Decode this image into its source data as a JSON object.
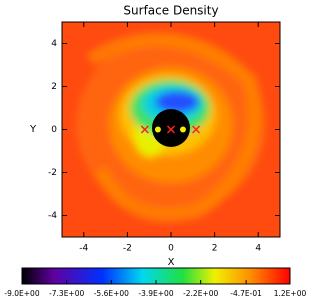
{
  "chart_data": {
    "type": "heatmap",
    "title": "Surface Density",
    "x_label": "X",
    "y_label": "Y",
    "xlim": [
      -5,
      5
    ],
    "ylim": [
      -5,
      5
    ],
    "xticks": [
      -4,
      -2,
      0,
      2,
      4
    ],
    "yticks": [
      -4,
      -2,
      0,
      2,
      4
    ],
    "series": [
      {
        "color": "#ff2020",
        "marker": "x",
        "x": [
          -1.2,
          0,
          1.15
        ],
        "values": [
          0,
          0,
          0
        ]
      },
      {
        "color": "#f0f000",
        "marker": "dot",
        "x": [
          -0.6,
          0.55
        ],
        "values": [
          0,
          0
        ]
      }
    ],
    "clim": [
      -9,
      1.2
    ],
    "cticks": [
      {
        "value": -9,
        "label": "-9.0E+00"
      },
      {
        "value": -7.3,
        "label": "-7.3E+00"
      },
      {
        "value": -5.6,
        "label": "-5.6E+00"
      },
      {
        "value": -3.9,
        "label": "-3.9E+00"
      },
      {
        "value": -2.2,
        "label": "-2.2E+00"
      },
      {
        "value": -0.47,
        "label": "-4.7E-01"
      },
      {
        "value": 1.2,
        "label": "1.2E+00"
      }
    ]
  }
}
